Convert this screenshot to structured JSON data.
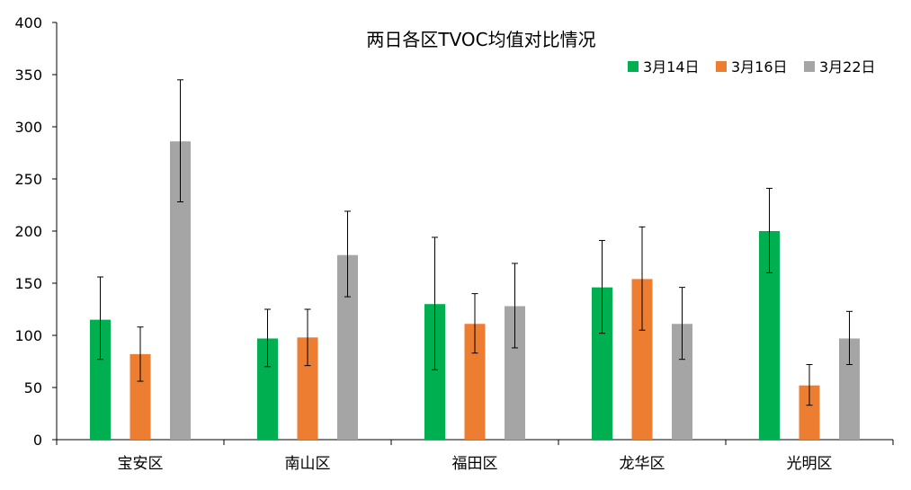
{
  "chart_data": {
    "type": "bar",
    "title": "两日各区TVOC均值对比情况",
    "xlabel": "",
    "ylabel": "",
    "ylim": [
      0,
      400
    ],
    "yticks": [
      0,
      50,
      100,
      150,
      200,
      250,
      300,
      350,
      400
    ],
    "categories": [
      "宝安区",
      "南山区",
      "福田区",
      "龙华区",
      "光明区"
    ],
    "legend_position": "top-right",
    "grid": false,
    "error_bars": true,
    "series": [
      {
        "name": "3月14日",
        "color": "#00b050",
        "values": [
          115,
          97,
          130,
          146,
          200
        ],
        "err_low": [
          77,
          70,
          67,
          102,
          160
        ],
        "err_high": [
          156,
          125,
          194,
          191,
          241
        ]
      },
      {
        "name": "3月16日",
        "color": "#ed7d31",
        "values": [
          82,
          98,
          111,
          154,
          52
        ],
        "err_low": [
          56,
          71,
          83,
          105,
          33
        ],
        "err_high": [
          108,
          125,
          140,
          204,
          72
        ]
      },
      {
        "name": "3月22日",
        "color": "#a5a5a5",
        "values": [
          286,
          177,
          128,
          111,
          97
        ],
        "err_low": [
          228,
          137,
          88,
          77,
          72
        ],
        "err_high": [
          345,
          219,
          169,
          146,
          123
        ]
      }
    ]
  }
}
